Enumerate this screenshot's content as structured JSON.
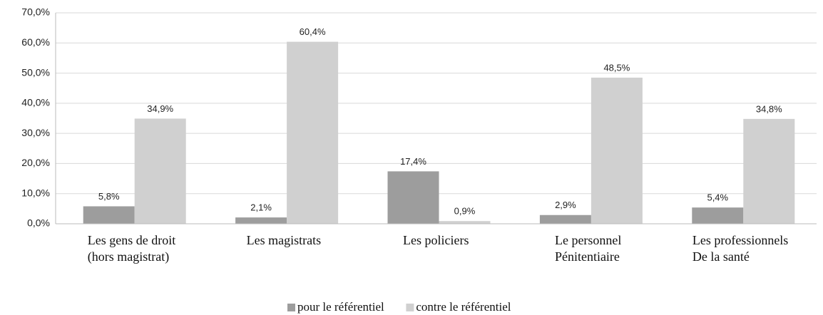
{
  "chart_data": {
    "type": "bar",
    "categories": [
      "Les gens de droit\n(hors magistrat)",
      "Les magistrats",
      "Les policiers",
      "Le personnel\nPénitentiaire",
      "Les professionnels\nDe la santé"
    ],
    "series": [
      {
        "name": "pour le référentiel",
        "color": "#9d9d9d",
        "values": [
          5.8,
          2.1,
          17.4,
          2.9,
          5.4
        ],
        "value_labels": [
          "5,8%",
          "2,1%",
          "17,4%",
          "2,9%",
          "5,4%"
        ]
      },
      {
        "name": "contre le référentiel",
        "color": "#d0d0d0",
        "values": [
          34.9,
          60.4,
          0.9,
          48.5,
          34.8
        ],
        "value_labels": [
          "34,9%",
          "60,4%",
          "0,9%",
          "48,5%",
          "34,8%"
        ]
      }
    ],
    "ylim": [
      0,
      70
    ],
    "yticks": [
      {
        "value": 0,
        "label": "0,0%"
      },
      {
        "value": 10,
        "label": "10,0%"
      },
      {
        "value": 20,
        "label": "20,0%"
      },
      {
        "value": 30,
        "label": "30,0%"
      },
      {
        "value": 40,
        "label": "40,0%"
      },
      {
        "value": 50,
        "label": "50,0%"
      },
      {
        "value": 60,
        "label": "60,0%"
      },
      {
        "value": 70,
        "label": "70,0%"
      }
    ],
    "grid": true,
    "legend": "bottom"
  }
}
